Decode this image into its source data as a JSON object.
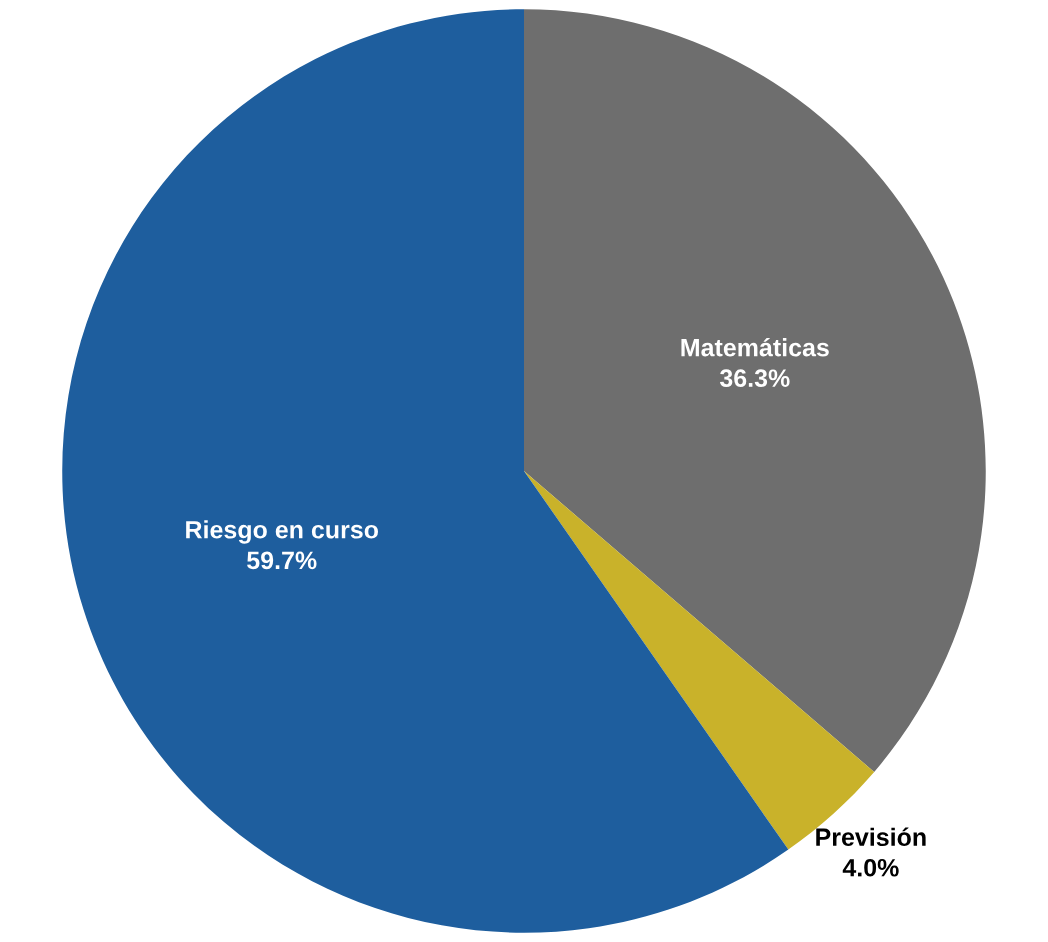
{
  "chart_data": {
    "type": "pie",
    "categories": [
      "Matemáticas",
      "Previsión",
      "Riesgo en curso"
    ],
    "values": [
      36.3,
      4.0,
      59.7
    ],
    "value_labels": [
      "36.3%",
      "4.0%",
      "59.7%"
    ],
    "colors": [
      "#6e6e6e",
      "#c9b22a",
      "#1e5e9e"
    ],
    "legend": false
  }
}
